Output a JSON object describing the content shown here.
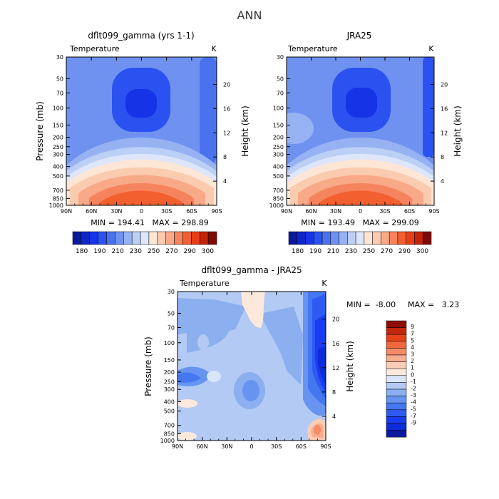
{
  "figure_title": "ANN",
  "colors": {
    "abs_scale": [
      "#0b1a9c",
      "#0e26c4",
      "#1633e6",
      "#2b52f0",
      "#4a72ee",
      "#6f92f0",
      "#97b2f3",
      "#bcd0f6",
      "#dde6fb",
      "#fde6d6",
      "#fbcbb0",
      "#f8a988",
      "#f5845e",
      "#f2602f",
      "#e63e16",
      "#c52409",
      "#7d0b04"
    ],
    "diff_scale": [
      "#0c1aa0",
      "#0e2bd8",
      "#1a3cf0",
      "#2d5af2",
      "#4577f0",
      "#6694f0",
      "#8cafef",
      "#b3caf4",
      "#d9e5fa",
      "#fde9dc",
      "#fbcdb6",
      "#f8ad8f",
      "#f58b67",
      "#f2673d",
      "#e54319",
      "#c2270c",
      "#8c0d05"
    ]
  },
  "chart_data": [
    {
      "type": "contour",
      "title": "dflt099_gamma (yrs 1-1)",
      "variable_label": "Temperature",
      "units_label": "K",
      "ylabel_left": "Pressure (mb)",
      "ylabel_right": "Height (km)",
      "x_tick_labels": [
        "90N",
        "60N",
        "30N",
        "0",
        "30S",
        "60S",
        "90S"
      ],
      "x_values_deg": [
        90,
        60,
        30,
        0,
        -30,
        -60,
        -90
      ],
      "y_pressure_ticks": [
        30,
        50,
        70,
        100,
        150,
        200,
        250,
        300,
        400,
        500,
        700,
        850,
        1000
      ],
      "y_height_ticks_km": [
        4,
        8,
        12,
        16,
        20
      ],
      "ylim_mb": [
        1000,
        30
      ],
      "stats": "MIN = 194.41   MAX = 298.89",
      "min": 194.41,
      "max": 298.89,
      "colorbar_labels": [
        "180",
        "190",
        "210",
        "230",
        "250",
        "270",
        "290",
        "300"
      ]
    },
    {
      "type": "contour",
      "title": "JRA25",
      "variable_label": "Temperature",
      "units_label": "K",
      "ylabel_left": "Pressure (mb)",
      "ylabel_right": "Height (km)",
      "x_tick_labels": [
        "90N",
        "60N",
        "30N",
        "0",
        "30S",
        "60S",
        "90S"
      ],
      "x_values_deg": [
        90,
        60,
        30,
        0,
        -30,
        -60,
        -90
      ],
      "y_pressure_ticks": [
        30,
        50,
        70,
        100,
        150,
        200,
        250,
        300,
        400,
        500,
        700,
        850,
        1000
      ],
      "y_height_ticks_km": [
        4,
        8,
        12,
        16,
        20
      ],
      "ylim_mb": [
        1000,
        30
      ],
      "stats": "MIN = 193.49   MAX = 299.09",
      "min": 193.49,
      "max": 299.09,
      "colorbar_labels": [
        "180",
        "190",
        "210",
        "230",
        "250",
        "270",
        "290",
        "300"
      ]
    },
    {
      "type": "contour",
      "title": "dflt099_gamma - JRA25",
      "variable_label": "Temperature",
      "units_label": "K",
      "ylabel_left": "Pressure (mb)",
      "ylabel_right": "Height (km)",
      "x_tick_labels": [
        "90N",
        "60N",
        "30N",
        "0",
        "30S",
        "60S",
        "90S"
      ],
      "x_values_deg": [
        90,
        60,
        30,
        0,
        -30,
        -60,
        -90
      ],
      "y_pressure_ticks": [
        30,
        50,
        70,
        100,
        150,
        200,
        250,
        300,
        400,
        500,
        700,
        850,
        1000
      ],
      "y_height_ticks_km": [
        4,
        8,
        12,
        16,
        20
      ],
      "ylim_mb": [
        1000,
        30
      ],
      "stats_min": "MIN =  -8.00",
      "stats_max": "MAX =   3.23",
      "min": -8.0,
      "max": 3.23,
      "colorbar_labels": [
        "9",
        "7",
        "5",
        "4",
        "3",
        "2",
        "1",
        "0",
        "-1",
        "-2",
        "-3",
        "-4",
        "-5",
        "-7",
        "-9"
      ]
    }
  ]
}
